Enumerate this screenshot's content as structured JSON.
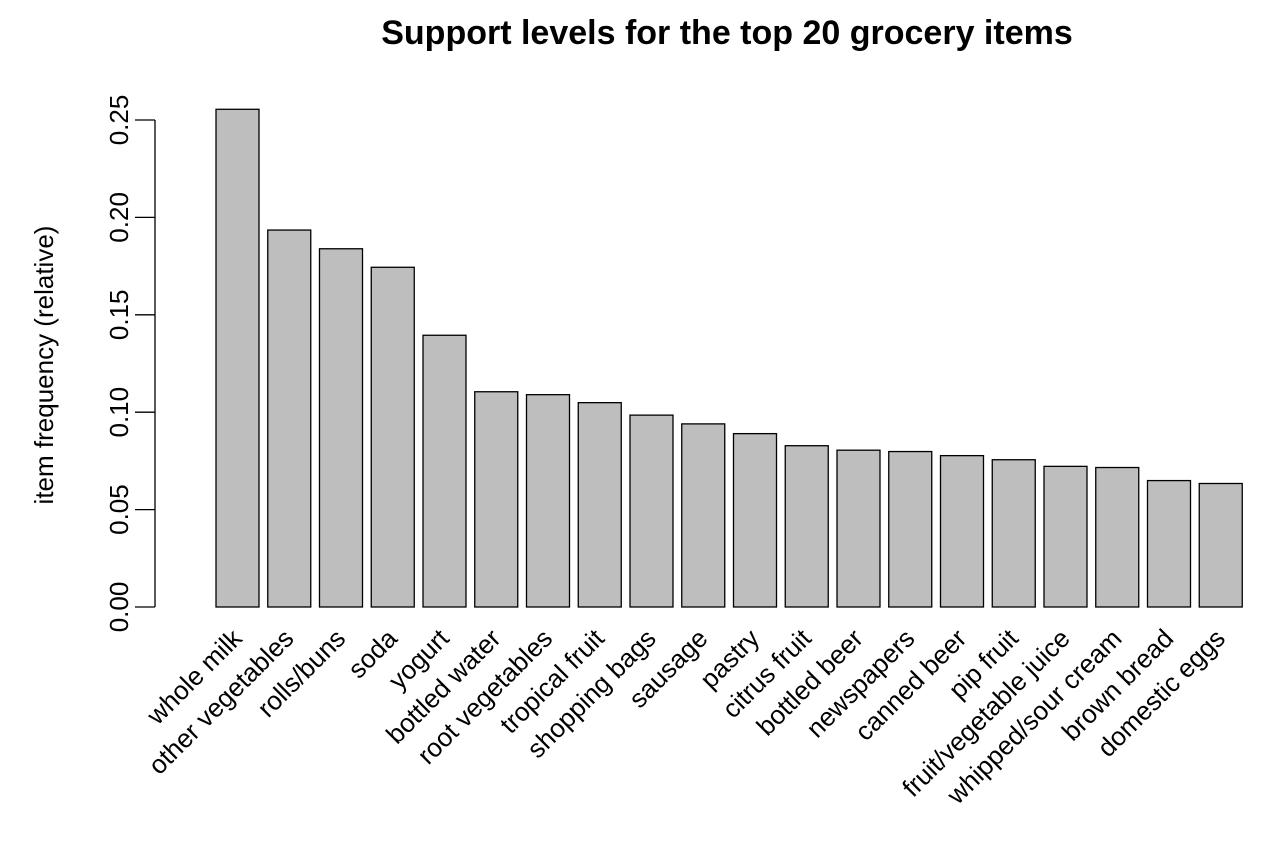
{
  "chart_data": {
    "type": "bar",
    "title": "Support levels for the top 20 grocery items",
    "xlabel": "",
    "ylabel": "item frequency (relative)",
    "ylim": [
      0,
      0.25
    ],
    "yticks": [
      "0.00",
      "0.05",
      "0.10",
      "0.15",
      "0.20",
      "0.25"
    ],
    "grid": false,
    "bar_color": "#bebebe",
    "categories": [
      "whole milk",
      "other vegetables",
      "rolls/buns",
      "soda",
      "yogurt",
      "bottled water",
      "root vegetables",
      "tropical fruit",
      "shopping bags",
      "sausage",
      "pastry",
      "citrus fruit",
      "bottled beer",
      "newspapers",
      "canned beer",
      "pip fruit",
      "fruit/vegetable juice",
      "whipped/sour cream",
      "brown bread",
      "domestic eggs"
    ],
    "values": [
      0.2555,
      0.1935,
      0.1839,
      0.1744,
      0.1395,
      0.1105,
      0.109,
      0.1049,
      0.0985,
      0.094,
      0.089,
      0.0828,
      0.0805,
      0.0798,
      0.0777,
      0.0756,
      0.0722,
      0.0716,
      0.0649,
      0.0634
    ]
  }
}
